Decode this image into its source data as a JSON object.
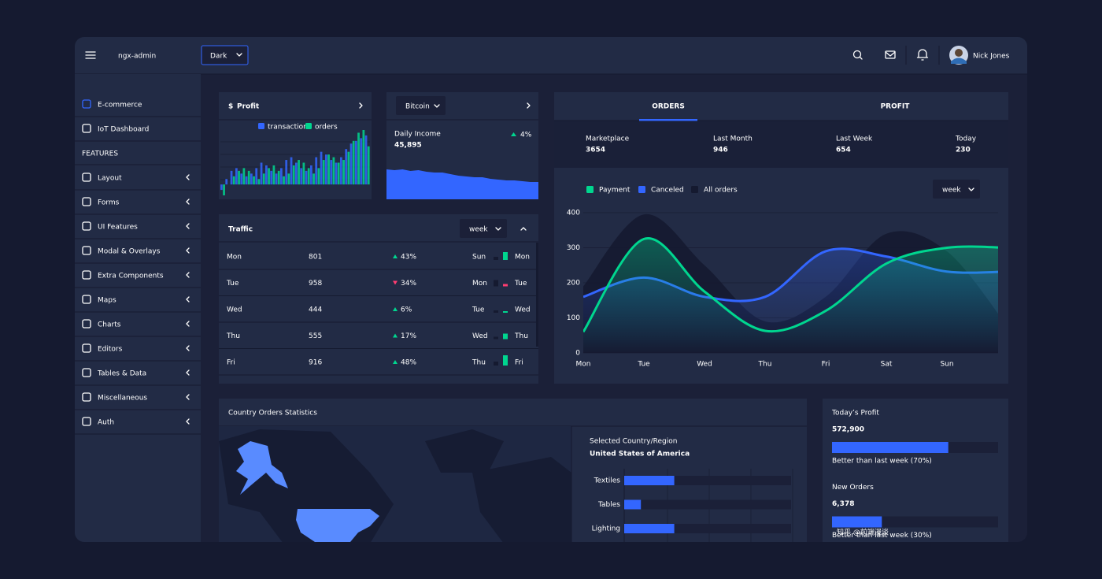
{
  "header": {
    "brand": "ngx-admin",
    "theme": "Dark",
    "user": "Nick Jones"
  },
  "sidebar": {
    "items": [
      {
        "label": "E-commerce",
        "active": true
      },
      {
        "label": "IoT Dashboard",
        "active": false
      }
    ],
    "section": "FEATURES",
    "features": [
      "Layout",
      "Forms",
      "UI Features",
      "Modal & Overlays",
      "Extra Components",
      "Maps",
      "Charts",
      "Editors",
      "Tables & Data",
      "Miscellaneous",
      "Auth"
    ]
  },
  "profit_card": {
    "currency": "$",
    "title": "Profit",
    "chart_data": {
      "type": "bar",
      "series": [
        {
          "name": "transactions",
          "color": "#3366ff",
          "values": [
            -10,
            10,
            25,
            30,
            20,
            15,
            20,
            30,
            40,
            35,
            25,
            20,
            30,
            45,
            50,
            40,
            30,
            25,
            35,
            50,
            60,
            55,
            45,
            40,
            50,
            65,
            75,
            80,
            85,
            90
          ]
        },
        {
          "name": "orders",
          "color": "#00d68f",
          "values": [
            -20,
            0,
            15,
            25,
            30,
            25,
            15,
            10,
            20,
            30,
            35,
            25,
            15,
            20,
            35,
            45,
            40,
            30,
            20,
            30,
            45,
            55,
            50,
            40,
            45,
            60,
            80,
            95,
            100,
            70
          ]
        }
      ]
    }
  },
  "bitcoin_card": {
    "currency": "Bitcoin",
    "label": "Daily Income",
    "amount": "45,895",
    "delta": "4%",
    "chart_data": {
      "type": "area",
      "color": "#3366ff",
      "values": [
        38,
        37,
        38,
        36,
        37,
        35,
        34,
        34,
        32,
        30,
        29,
        28,
        28,
        26,
        25,
        24,
        24,
        23,
        22,
        22
      ]
    }
  },
  "traffic": {
    "title": "Traffic",
    "period": "week",
    "rows": [
      {
        "day": "Mon",
        "value": 801,
        "delta": "43%",
        "trend": "up",
        "compare": "Sun",
        "bars": [
          4,
          10
        ]
      },
      {
        "day": "Tue",
        "value": 958,
        "delta": "34%",
        "trend": "down",
        "compare": "Mon",
        "bars": [
          8,
          3
        ]
      },
      {
        "day": "Wed",
        "value": 444,
        "delta": "6%",
        "trend": "up",
        "compare": "Tue",
        "bars": [
          3,
          2
        ]
      },
      {
        "day": "Thu",
        "value": 555,
        "delta": "17%",
        "trend": "up",
        "compare": "Wed",
        "bars": [
          3,
          7
        ]
      },
      {
        "day": "Fri",
        "value": 916,
        "delta": "48%",
        "trend": "up",
        "compare": "Thu",
        "bars": [
          5,
          13
        ]
      }
    ]
  },
  "orders": {
    "tabs": [
      "ORDERS",
      "PROFIT"
    ],
    "active_tab": 0,
    "summary": [
      {
        "label": "Marketplace",
        "value": 3654
      },
      {
        "label": "Last Month",
        "value": 946
      },
      {
        "label": "Last Week",
        "value": 654
      },
      {
        "label": "Today",
        "value": 230
      }
    ],
    "period": "week",
    "chart_data": {
      "type": "line",
      "categories": [
        "Mon",
        "Tue",
        "Wed",
        "Thu",
        "Fri",
        "Sat",
        "Sun",
        null
      ],
      "series": [
        {
          "name": "Payment",
          "color": "#00d68f",
          "values": [
            60,
            325,
            175,
            63,
            120,
            255,
            300,
            300
          ]
        },
        {
          "name": "Canceled",
          "color": "#3366ff",
          "values": [
            160,
            215,
            160,
            160,
            290,
            275,
            232,
            232
          ]
        },
        {
          "name": "All orders",
          "color": "#151a30",
          "values": [
            190,
            395,
            250,
            90,
            160,
            340,
            290,
            75
          ]
        }
      ],
      "ylim": [
        0,
        400
      ],
      "yticks": [
        0,
        100,
        200,
        300,
        400
      ],
      "grid": true
    }
  },
  "country": {
    "title": "Country Orders Statistics",
    "caption": "Selected Country/Region",
    "country": "United States of America",
    "chart_data": {
      "type": "bar",
      "categories": [
        "Textiles",
        "Tables",
        "Lighting"
      ],
      "values": [
        30,
        10,
        30
      ],
      "xlim": [
        0,
        100
      ],
      "color": "#3366ff"
    }
  },
  "stats": [
    {
      "title": "Today’s Profit",
      "value": "572,900",
      "progress": 70,
      "note": "Better than last week (70%)"
    },
    {
      "title": "New Orders",
      "value": "6,378",
      "progress": 30,
      "note": "Better than last week (30%)"
    }
  ],
  "watermark": "知乎 @前端漫谈"
}
